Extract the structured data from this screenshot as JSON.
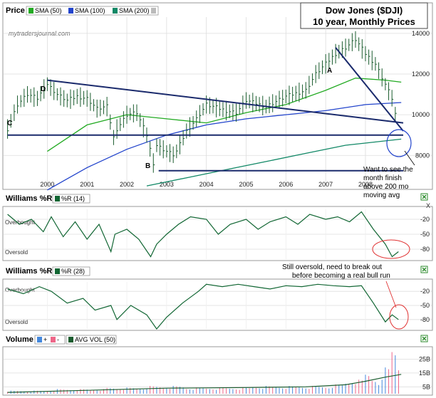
{
  "chart_data": [
    {
      "type": "line",
      "panel": "Price",
      "title_box": {
        "line1": "Dow Jones ($DJI)",
        "line2": "10 year, Monthly Prices"
      },
      "watermark": "mytradersjournal.com",
      "legend": [
        {
          "label": "SMA (50)",
          "color": "#22aa22"
        },
        {
          "label": "SMA (100)",
          "color": "#2244cc"
        },
        {
          "label": "SMA (200)",
          "color": "#118866"
        }
      ],
      "x_ticks": [
        "2000",
        "2001",
        "2002",
        "2003",
        "2004",
        "2005",
        "2006",
        "2007",
        "2008"
      ],
      "y_ticks": [
        8000,
        10000,
        12000,
        14000
      ],
      "ylim": [
        6400,
        14800
      ],
      "xlim": [
        1998.9,
        2008.95
      ],
      "close_series": {
        "name": "Price",
        "x": [
          1999.0,
          1999.25,
          1999.5,
          1999.75,
          2000.0,
          2000.25,
          2000.5,
          2000.75,
          2001.0,
          2001.25,
          2001.5,
          2001.67,
          2001.75,
          2002.0,
          2002.25,
          2002.5,
          2002.67,
          2002.75,
          2003.0,
          2003.2,
          2003.5,
          2003.75,
          2004.0,
          2004.5,
          2004.75,
          2005.0,
          2005.5,
          2006.0,
          2006.5,
          2006.75,
          2007.0,
          2007.25,
          2007.5,
          2007.75,
          2008.0,
          2008.25,
          2008.5,
          2008.67,
          2008.83
        ],
        "y": [
          9300,
          10500,
          11000,
          10800,
          11500,
          11000,
          10700,
          10900,
          10800,
          10300,
          10400,
          8850,
          9300,
          10000,
          10100,
          9000,
          7600,
          8500,
          8200,
          8000,
          9200,
          9800,
          10500,
          10200,
          10100,
          10700,
          10400,
          10900,
          11200,
          12000,
          12500,
          13000,
          13300,
          13700,
          13000,
          12500,
          11500,
          10800,
          9300
        ]
      },
      "sma_series": [
        {
          "name": "SMA (50)",
          "x": [
            2000.0,
            2001.0,
            2002.0,
            2003.0,
            2004.0,
            2005.0,
            2006.0,
            2007.0,
            2007.75,
            2008.5,
            2008.9
          ],
          "y": [
            8200,
            9500,
            10000,
            9800,
            9600,
            10100,
            10500,
            11200,
            11800,
            11700,
            11600
          ]
        },
        {
          "name": "SMA (100)",
          "x": [
            2000.0,
            2001.0,
            2002.0,
            2003.0,
            2004.0,
            2005.0,
            2006.0,
            2007.0,
            2008.0,
            2008.9
          ],
          "y": [
            6300,
            7400,
            8300,
            9000,
            9500,
            9800,
            10000,
            10200,
            10500,
            10600
          ]
        },
        {
          "name": "SMA (200)",
          "x": [
            2002.5,
            2003.5,
            2004.5,
            2005.5,
            2006.5,
            2007.5,
            2008.9
          ],
          "y": [
            6500,
            6900,
            7300,
            7700,
            8100,
            8500,
            8800
          ]
        }
      ],
      "trendlines": [
        {
          "label": "D",
          "x": [
            2000.0,
            2008.95
          ],
          "y": [
            11700,
            9600
          ]
        },
        {
          "label": "A",
          "x": [
            2007.25,
            2008.95
          ],
          "y": [
            13300,
            9200
          ]
        },
        {
          "label": "C",
          "x": [
            1999.0,
            2008.95
          ],
          "y": [
            9000,
            9000
          ]
        },
        {
          "label": "B",
          "x": [
            2002.8,
            2008.95
          ],
          "y": [
            7250,
            7250
          ]
        }
      ],
      "annotation": "Want to see the month finish above 200 mo moving avg"
    },
    {
      "type": "line",
      "panel": "Williams %R",
      "legend": [
        {
          "label": "%R (14)",
          "color": "#116633"
        }
      ],
      "labels": {
        "top": "Overbought",
        "bottom": "Oversold"
      },
      "y_ticks": [
        -20,
        -50,
        -80
      ],
      "ylim": [
        -100,
        0
      ],
      "x": [
        1999.0,
        1999.3,
        1999.6,
        1999.9,
        2000.1,
        2000.4,
        2000.7,
        2001.0,
        2001.3,
        2001.6,
        2001.7,
        2002.0,
        2002.3,
        2002.6,
        2002.75,
        2003.0,
        2003.3,
        2003.6,
        2004.0,
        2004.3,
        2004.6,
        2005.0,
        2005.3,
        2005.6,
        2006.0,
        2006.3,
        2006.6,
        2007.0,
        2007.3,
        2007.6,
        2007.9,
        2008.2,
        2008.5,
        2008.67,
        2008.83
      ],
      "y": [
        -10,
        -30,
        -20,
        -45,
        -15,
        -55,
        -25,
        -60,
        -30,
        -85,
        -50,
        -40,
        -60,
        -95,
        -70,
        -50,
        -30,
        -15,
        -20,
        -50,
        -30,
        -20,
        -40,
        -25,
        -15,
        -30,
        -10,
        -20,
        -15,
        -25,
        -5,
        -40,
        -70,
        -95,
        -85
      ]
    },
    {
      "type": "line",
      "panel": "Williams %R",
      "legend": [
        {
          "label": "%R (28)",
          "color": "#116633"
        }
      ],
      "labels": {
        "top": "Overbought",
        "bottom": "Oversold"
      },
      "y_ticks": [
        -20,
        -50,
        -80
      ],
      "ylim": [
        -100,
        0
      ],
      "x": [
        1999.0,
        1999.4,
        1999.8,
        2000.1,
        2000.5,
        2000.9,
        2001.2,
        2001.6,
        2001.75,
        2002.1,
        2002.5,
        2002.75,
        2003.0,
        2003.4,
        2003.8,
        2004.0,
        2004.4,
        2004.8,
        2005.2,
        2005.6,
        2006.0,
        2006.4,
        2006.8,
        2007.2,
        2007.6,
        2007.9,
        2008.2,
        2008.5,
        2008.67,
        2008.83
      ],
      "y": [
        -15,
        -25,
        -10,
        -20,
        -45,
        -35,
        -60,
        -50,
        -80,
        -50,
        -70,
        -100,
        -75,
        -45,
        -20,
        -5,
        -10,
        -5,
        -10,
        -15,
        -8,
        -10,
        -5,
        -8,
        -10,
        -8,
        -45,
        -85,
        -70,
        -80
      ]
    },
    {
      "type": "bar",
      "panel": "Volume",
      "legend": [
        {
          "label": "+",
          "color": "#4488dd"
        },
        {
          "label": "-",
          "color": "#ee6688"
        },
        {
          "label": "AVG VOL (50)",
          "color": "#1a5c2e"
        }
      ],
      "y_ticks": [
        "25B",
        "15B",
        "5B"
      ],
      "y_tick_values": [
        25,
        15,
        5
      ],
      "ylim": [
        0,
        33
      ],
      "x": [
        1999.5,
        1999.83,
        2000.17,
        2000.5,
        2000.83,
        2001.17,
        2001.5,
        2001.83,
        2002.17,
        2002.5,
        2002.83,
        2003.17,
        2003.5,
        2003.83,
        2004.17,
        2004.5,
        2004.83,
        2005.17,
        2005.5,
        2005.83,
        2006.17,
        2006.5,
        2006.83,
        2007.17,
        2007.5,
        2007.67,
        2007.83,
        2008.0,
        2008.17,
        2008.33,
        2008.5,
        2008.67,
        2008.83
      ],
      "values": [
        2,
        2,
        3,
        3,
        3,
        3,
        4,
        4,
        4,
        5,
        5,
        5,
        4,
        4,
        4,
        4,
        4,
        5,
        5,
        5,
        5,
        5,
        5,
        6,
        8,
        10,
        9,
        14,
        11,
        9,
        18,
        33,
        22
      ],
      "directions": [
        "+",
        "+",
        "-",
        "+",
        "-",
        "-",
        "+",
        "-",
        "+",
        "-",
        "-",
        "+",
        "+",
        "+",
        "-",
        "+",
        "-",
        "+",
        "-",
        "+",
        "+",
        "-",
        "+",
        "+",
        "-",
        "+",
        "-",
        "-",
        "-",
        "+",
        "-",
        "-",
        "-"
      ],
      "avg_series": {
        "name": "AVG VOL (50)",
        "x": [
          1999.0,
          2001.0,
          2003.0,
          2005.0,
          2006.5,
          2007.5,
          2008.0,
          2008.5,
          2008.9
        ],
        "y": [
          1,
          2.5,
          4,
          4.5,
          5,
          6.5,
          9,
          12,
          14
        ]
      }
    }
  ],
  "status": {
    "williams_close_icon": "x-close-icon",
    "volume_close_icon": "x-close-icon"
  },
  "annotations": {
    "right_note": "Want to see the month finish above 200 mo moving avg",
    "right_note_lines": [
      "Want to see the",
      "month finish",
      "above 200 mo",
      "moving avg"
    ],
    "wr_note_lines": [
      "Still oversold, need to break out",
      "before becoming a real bull run"
    ],
    "labels": {
      "A": "A",
      "B": "B",
      "C": "C",
      "D": "D"
    },
    "x_marker": "X"
  },
  "panel_titles": {
    "price": "Price",
    "wr14": "Williams %R",
    "wr28": "Williams %R",
    "volume": "Volume"
  }
}
